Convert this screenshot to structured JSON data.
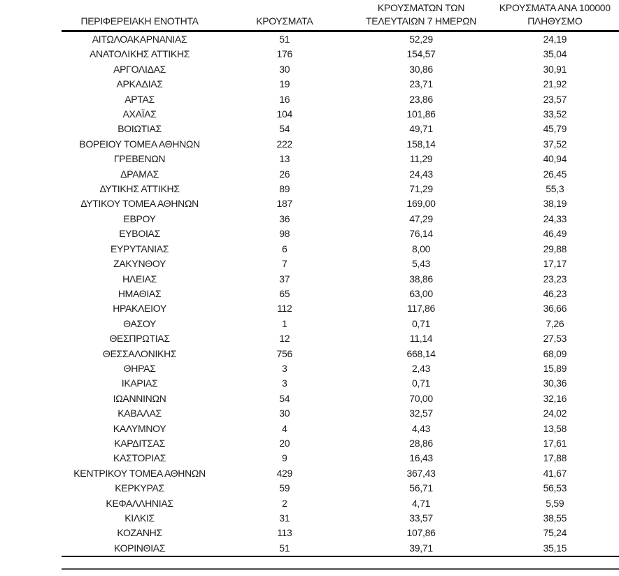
{
  "table": {
    "header": {
      "region": "ΠΕΡΙΦΕΡΕΙΑΚΗ ΕΝΟΤΗΤΑ",
      "cases": "ΚΡΟΥΣΜΑΤΑ",
      "cases7_line1": "ΚΡΟΥΣΜΑΤΩΝ ΤΩΝ",
      "cases7_line2": "ΤΕΛΕΥΤΑΙΩΝ 7 ΗΜΕΡΩΝ",
      "per100k_line1": "ΚΡΟΥΣΜΑΤΑ ΑΝΑ 100000",
      "per100k_line2": "ΠΛΗΘΥΣΜΟ"
    },
    "rows": [
      [
        "ΑΙΤΩΛΟΑΚΑΡΝΑΝΙΑΣ",
        "51",
        "52,29",
        "24,19"
      ],
      [
        "ΑΝΑΤΟΛΙΚΗΣ ΑΤΤΙΚΗΣ",
        "176",
        "154,57",
        "35,04"
      ],
      [
        "ΑΡΓΟΛΙΔΑΣ",
        "30",
        "30,86",
        "30,91"
      ],
      [
        "ΑΡΚΑΔΙΑΣ",
        "19",
        "23,71",
        "21,92"
      ],
      [
        "ΑΡΤΑΣ",
        "16",
        "23,86",
        "23,57"
      ],
      [
        "ΑΧΑΪΑΣ",
        "104",
        "101,86",
        "33,52"
      ],
      [
        "ΒΟΙΩΤΙΑΣ",
        "54",
        "49,71",
        "45,79"
      ],
      [
        "ΒΟΡΕΙΟΥ ΤΟΜΕΑ ΑΘΗΝΩΝ",
        "222",
        "158,14",
        "37,52"
      ],
      [
        "ΓΡΕΒΕΝΩΝ",
        "13",
        "11,29",
        "40,94"
      ],
      [
        "ΔΡΑΜΑΣ",
        "26",
        "24,43",
        "26,45"
      ],
      [
        "ΔΥΤΙΚΗΣ ΑΤΤΙΚΗΣ",
        "89",
        "71,29",
        "55,3"
      ],
      [
        "ΔΥΤΙΚΟΥ ΤΟΜΕΑ ΑΘΗΝΩΝ",
        "187",
        "169,00",
        "38,19"
      ],
      [
        "ΕΒΡΟΥ",
        "36",
        "47,29",
        "24,33"
      ],
      [
        "ΕΥΒΟΙΑΣ",
        "98",
        "76,14",
        "46,49"
      ],
      [
        "ΕΥΡΥΤΑΝΙΑΣ",
        "6",
        "8,00",
        "29,88"
      ],
      [
        "ΖΑΚΥΝΘΟΥ",
        "7",
        "5,43",
        "17,17"
      ],
      [
        "ΗΛΕΙΑΣ",
        "37",
        "38,86",
        "23,23"
      ],
      [
        "ΗΜΑΘΙΑΣ",
        "65",
        "63,00",
        "46,23"
      ],
      [
        "ΗΡΑΚΛΕΙΟΥ",
        "112",
        "117,86",
        "36,66"
      ],
      [
        "ΘΑΣΟΥ",
        "1",
        "0,71",
        "7,26"
      ],
      [
        "ΘΕΣΠΡΩΤΙΑΣ",
        "12",
        "11,14",
        "27,53"
      ],
      [
        "ΘΕΣΣΑΛΟΝΙΚΗΣ",
        "756",
        "668,14",
        "68,09"
      ],
      [
        "ΘΗΡΑΣ",
        "3",
        "2,43",
        "15,89"
      ],
      [
        "ΙΚΑΡΙΑΣ",
        "3",
        "0,71",
        "30,36"
      ],
      [
        "ΙΩΑΝΝΙΝΩΝ",
        "54",
        "70,00",
        "32,16"
      ],
      [
        "ΚΑΒΑΛΑΣ",
        "30",
        "32,57",
        "24,02"
      ],
      [
        "ΚΑΛΥΜΝΟΥ",
        "4",
        "4,43",
        "13,58"
      ],
      [
        "ΚΑΡΔΙΤΣΑΣ",
        "20",
        "28,86",
        "17,61"
      ],
      [
        "ΚΑΣΤΟΡΙΑΣ",
        "9",
        "16,43",
        "17,88"
      ],
      [
        "ΚΕΝΤΡΙΚΟΥ ΤΟΜΕΑ ΑΘΗΝΩΝ",
        "429",
        "367,43",
        "41,67"
      ],
      [
        "ΚΕΡΚΥΡΑΣ",
        "59",
        "56,71",
        "56,53"
      ],
      [
        "ΚΕΦΑΛΛΗΝΙΑΣ",
        "2",
        "4,71",
        "5,59"
      ],
      [
        "ΚΙΛΚΙΣ",
        "31",
        "33,57",
        "38,55"
      ],
      [
        "ΚΟΖΑΝΗΣ",
        "113",
        "107,86",
        "75,24"
      ],
      [
        "ΚΟΡΙΝΘΙΑΣ",
        "51",
        "39,71",
        "35,15"
      ]
    ]
  }
}
